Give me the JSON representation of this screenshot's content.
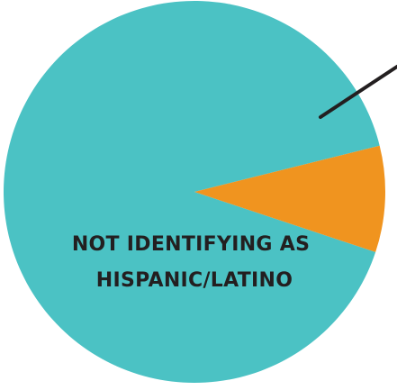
{
  "chart_data": {
    "type": "pie",
    "slices": [
      {
        "label": "NOT IDENTIFYING AS HISPANIC/LATINO",
        "label_lines": [
          "NOT IDENTIFYING AS",
          "HISPANIC/LATINO"
        ],
        "value": 91,
        "color": "#4bc2c4"
      },
      {
        "label": "",
        "value": 9,
        "color": "#f0941f"
      }
    ],
    "start_angle_deg": 14,
    "title": "",
    "legend": "none"
  }
}
